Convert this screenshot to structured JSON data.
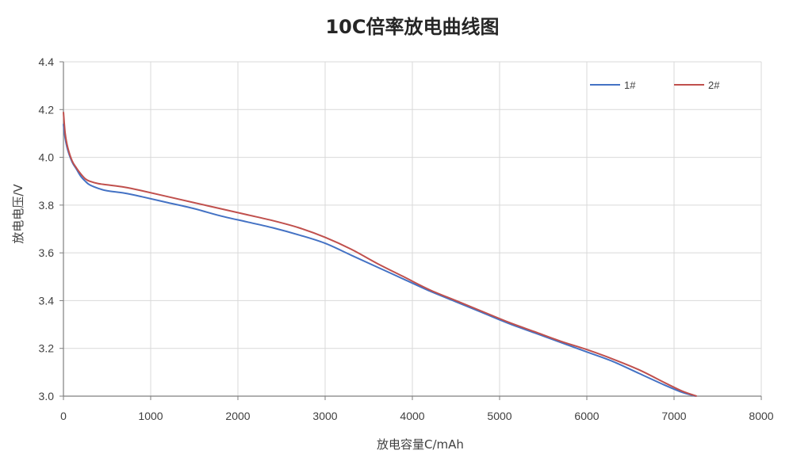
{
  "chart_data": {
    "type": "line",
    "title": "10C倍率放电曲线图",
    "xlabel": "放电容量C/mAh",
    "ylabel": "放电电压/V",
    "xlim": [
      0,
      8000
    ],
    "ylim": [
      3.0,
      4.4
    ],
    "xticks": [
      0,
      1000,
      2000,
      3000,
      4000,
      5000,
      6000,
      7000,
      8000
    ],
    "xtick_labels": [
      "0",
      "1000",
      "2000",
      "3000",
      "4000",
      "5000",
      "6000",
      "7000",
      "8000"
    ],
    "yticks": [
      3.0,
      3.2,
      3.4,
      3.6,
      3.8,
      4.0,
      4.2,
      4.4
    ],
    "ytick_labels": [
      "3.0",
      "3.2",
      "3.4",
      "3.6",
      "3.8",
      "4.0",
      "4.2",
      "4.4"
    ],
    "grid": true,
    "legend_position": "top-right",
    "series": [
      {
        "name": "1#",
        "color": "#4472C4",
        "x": [
          0,
          20,
          50,
          100,
          150,
          200,
          250,
          300,
          400,
          500,
          700,
          900,
          1200,
          1500,
          1800,
          2100,
          2400,
          2700,
          3000,
          3300,
          3600,
          3900,
          4200,
          4500,
          4800,
          5100,
          5400,
          5700,
          6000,
          6300,
          6600,
          6900,
          7100,
          7250
        ],
        "y": [
          4.14,
          4.08,
          4.03,
          3.98,
          3.95,
          3.92,
          3.9,
          3.885,
          3.87,
          3.86,
          3.85,
          3.835,
          3.81,
          3.785,
          3.755,
          3.73,
          3.705,
          3.675,
          3.64,
          3.59,
          3.54,
          3.49,
          3.44,
          3.395,
          3.35,
          3.305,
          3.265,
          3.225,
          3.185,
          3.145,
          3.095,
          3.045,
          3.015,
          3.0
        ]
      },
      {
        "name": "2#",
        "color": "#C0504D",
        "x": [
          0,
          20,
          50,
          100,
          150,
          200,
          250,
          300,
          400,
          500,
          700,
          900,
          1200,
          1500,
          1800,
          2100,
          2400,
          2700,
          3000,
          3300,
          3600,
          3900,
          4200,
          4500,
          4800,
          5100,
          5400,
          5700,
          6000,
          6300,
          6600,
          6900,
          7100,
          7260
        ],
        "y": [
          4.19,
          4.1,
          4.04,
          3.985,
          3.955,
          3.93,
          3.91,
          3.9,
          3.89,
          3.885,
          3.875,
          3.86,
          3.835,
          3.81,
          3.785,
          3.76,
          3.735,
          3.705,
          3.665,
          3.615,
          3.555,
          3.5,
          3.445,
          3.4,
          3.355,
          3.31,
          3.27,
          3.23,
          3.195,
          3.155,
          3.11,
          3.055,
          3.02,
          3.0
        ]
      }
    ]
  }
}
